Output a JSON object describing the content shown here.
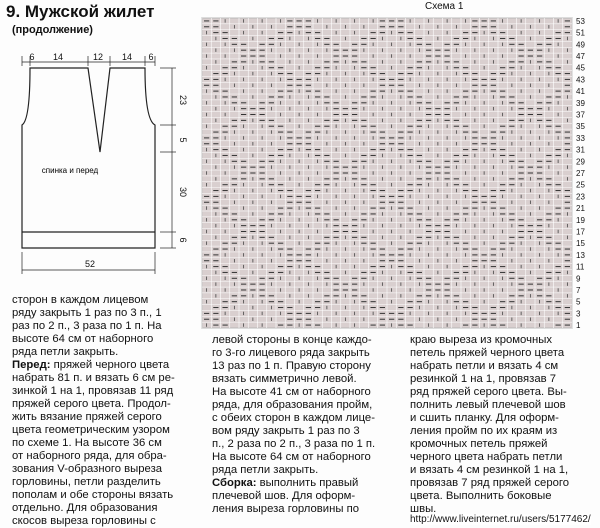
{
  "header": {
    "title": "9. Мужской жилет",
    "subtitle": "(продолжение)"
  },
  "schematic": {
    "label": "спинка и перед",
    "top": [
      "6",
      "14",
      "12",
      "14",
      "6"
    ],
    "side": [
      "23",
      "5",
      "30",
      "6"
    ],
    "bottom": "52"
  },
  "chart": {
    "title": "Схема 1",
    "rows": [
      "53",
      "51",
      "49",
      "47",
      "45",
      "43",
      "41",
      "39",
      "37",
      "35",
      "33",
      "31",
      "29",
      "27",
      "25",
      "23",
      "21",
      "19",
      "17",
      "15",
      "13",
      "11",
      "9",
      "7",
      "5",
      "3",
      "1"
    ]
  },
  "columns": [
    {
      "lines": [
        "сторон в каждом лицевом",
        "ряду закрыть 1 раз по 3 п., 1",
        "раз по 2 п., 3 раза по 1 п. На",
        "высоте 64 см от наборного",
        "ряда петли закрыть.",
        {
          "bold": "Перед:",
          "text": " пряжей черного цвета"
        },
        "набрать 81 п. и вязать 6 см ре-",
        "зинкой 1 на 1, провязав 11 ряд",
        "пряжей серого цвета. Продол-",
        "жить вязание пряжей серого",
        "цвета геометрическим узором",
        "по схеме 1. На высоте 36 см",
        "от наборного ряда, для обра-",
        "зования V-образного выреза",
        "горловины, петли разделить",
        "пополам и обе стороны вязать",
        "отдельно. Для образования",
        "скосов выреза горловины с"
      ]
    },
    {
      "lines": [
        "левой стороны в конце каждо-",
        "го 3-го лицевого ряда закрыть",
        "13 раз по 1 п. Правую сторону",
        "вязать симметрично левой.",
        "На высоте 41 см от наборного",
        "ряда, для образования пройм,",
        "с обеих сторон в каждом лице-",
        "вом ряду закрыть 1 раз по 3",
        "п., 2 раза по 2 п., 3 раза по 1 п.",
        "На высоте 64 см от наборного",
        "ряда петли закрыть.",
        {
          "bold": "Сборка:",
          "text": " выполнить правый"
        },
        "плечевой шов. Для оформ-",
        "ления выреза горловины по"
      ]
    },
    {
      "lines": [
        "краю выреза из кромочных",
        "петель пряжей черного цвета",
        "набрать петли и вязать 4 см",
        "резинкой 1 на 1, провязав 7",
        "ряд пряжей серого цвета. Вы-",
        "полнить левый плечевой шов",
        "и сшить планку. Для оформ-",
        "ления пройм по их краям из",
        "кромочных петель пряжей",
        "черного цвета набрать петли",
        "и вязать 4 см резинкой 1 на 1,",
        "провязав 7 ряд пряжей серого",
        "цвета. Выполнить боковые",
        "швы."
      ]
    }
  ],
  "footer": {
    "url": "http://www.liveinternet.ru/users/5177462/"
  }
}
